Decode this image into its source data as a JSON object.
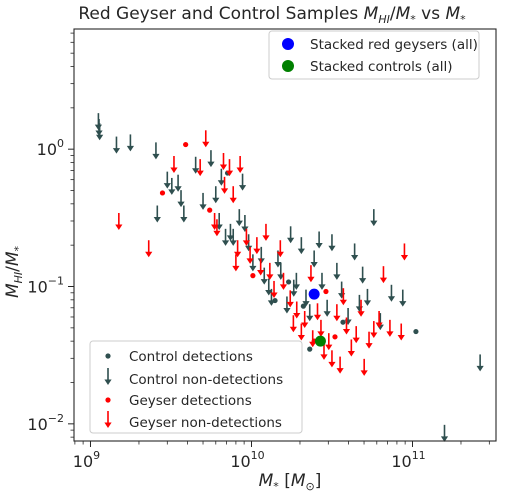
{
  "chart_data": {
    "type": "scatter",
    "title": "Red Geyser and Control Samples M_HI/M_* vs M_*",
    "title_parts": {
      "prefix": "Red Geyser and Control Samples ",
      "y_main": "M",
      "y_sub": "HI",
      "slash": "/",
      "x_main": "M",
      "x_sub": "*",
      "vs": " vs ",
      "x2_main": "M",
      "x2_sub": "*"
    },
    "xlabel": "M_* [M_sun]",
    "xlabel_parts": {
      "main": "M",
      "sub": "*",
      "bracket_open": " [",
      "unit_main": "M",
      "unit_sub": "⊙",
      "bracket_close": "]"
    },
    "ylabel": "M_HI/M_*",
    "ylabel_parts": {
      "main": "M",
      "sub": "HI",
      "slash": "/",
      "main2": "M",
      "sub2": "*"
    },
    "x_scale": "log",
    "y_scale": "log",
    "xlim": [
      790000000,
      330000000000
    ],
    "ylim": [
      0.0075,
      7.5
    ],
    "x_ticks": [
      {
        "value": 1000000000,
        "base": "10",
        "exp": "9"
      },
      {
        "value": 10000000000,
        "base": "10",
        "exp": "10"
      },
      {
        "value": 100000000000,
        "base": "10",
        "exp": "11"
      }
    ],
    "y_ticks": [
      {
        "value": 0.01,
        "base": "10",
        "exp": "−2"
      },
      {
        "value": 0.1,
        "base": "10",
        "exp": "−1"
      },
      {
        "value": 1,
        "base": "10",
        "exp": "0"
      }
    ],
    "grid": false,
    "colors": {
      "control": "#2f4f4f",
      "geyser": "#ff0000",
      "stacked_geysers": "#0000ff",
      "stacked_controls": "#008000",
      "axis": "#262626"
    },
    "legend_top": {
      "placement": "top-right",
      "entries": [
        {
          "label": "Stacked red geysers (all)",
          "marker": "big-circle",
          "series": "stacked_geysers"
        },
        {
          "label": "Stacked controls (all)",
          "marker": "big-circle",
          "series": "stacked_controls"
        }
      ]
    },
    "legend_bottom": {
      "placement": "bottom-left",
      "entries": [
        {
          "label": "Control detections",
          "marker": "dot",
          "series": "control"
        },
        {
          "label": "Control non-detections",
          "marker": "arrow",
          "series": "control"
        },
        {
          "label": "Geyser detections",
          "marker": "dot",
          "series": "geyser"
        },
        {
          "label": "Geyser non-detections",
          "marker": "arrow",
          "series": "geyser"
        }
      ]
    },
    "series": [
      {
        "name": "Control detections",
        "kind": "detection",
        "color_key": "control",
        "points": [
          [
            7100000000,
            0.67
          ],
          [
            17000000000,
            0.108
          ],
          [
            14000000000,
            0.079
          ],
          [
            21000000000,
            0.072
          ],
          [
            37000000000,
            0.055
          ],
          [
            105000000000,
            0.047
          ],
          [
            23000000000,
            0.035
          ]
        ]
      },
      {
        "name": "Control non-detections",
        "kind": "upper-limit",
        "color_key": "control",
        "points": [
          [
            1120000000,
            1.6
          ],
          [
            1130000000,
            1.45
          ],
          [
            1140000000,
            1.35
          ],
          [
            1450000000,
            1.08
          ],
          [
            1770000000,
            1.12
          ],
          [
            2550000000,
            0.98
          ],
          [
            2600000000,
            0.34
          ],
          [
            3000000000,
            0.6
          ],
          [
            3200000000,
            0.54
          ],
          [
            3500000000,
            0.57
          ],
          [
            3650000000,
            0.44
          ],
          [
            3800000000,
            0.34
          ],
          [
            4500000000,
            0.77
          ],
          [
            5000000000,
            0.42
          ],
          [
            5600000000,
            0.86
          ],
          [
            6000000000,
            0.47
          ],
          [
            6300000000,
            0.3
          ],
          [
            6500000000,
            0.63
          ],
          [
            6900000000,
            0.23
          ],
          [
            7400000000,
            0.25
          ],
          [
            7700000000,
            0.23
          ],
          [
            8400000000,
            0.32
          ],
          [
            8800000000,
            0.58
          ],
          [
            9100000000,
            0.29
          ],
          [
            9600000000,
            0.21
          ],
          [
            10200000000,
            0.15
          ],
          [
            11500000000,
            0.17
          ],
          [
            12000000000,
            0.12
          ],
          [
            12800000000,
            0.1
          ],
          [
            13300000000,
            0.084
          ],
          [
            14600000000,
            0.16
          ],
          [
            15200000000,
            0.13
          ],
          [
            16600000000,
            0.074
          ],
          [
            17500000000,
            0.24
          ],
          [
            18300000000,
            0.098
          ],
          [
            19000000000,
            0.11
          ],
          [
            20400000000,
            0.2
          ],
          [
            21800000000,
            0.083
          ],
          [
            23000000000,
            0.065
          ],
          [
            24500000000,
            0.16
          ],
          [
            26300000000,
            0.22
          ],
          [
            27400000000,
            0.11
          ],
          [
            29500000000,
            0.07
          ],
          [
            31600000000,
            0.21
          ],
          [
            33900000000,
            0.13
          ],
          [
            36300000000,
            0.095
          ],
          [
            39800000000,
            0.061
          ],
          [
            43700000000,
            0.18
          ],
          [
            46800000000,
            0.076
          ],
          [
            49000000000,
            0.122
          ],
          [
            52500000000,
            0.084
          ],
          [
            57500000000,
            0.32
          ],
          [
            63100000000,
            0.056
          ],
          [
            74000000000,
            0.09
          ],
          [
            87000000000,
            0.083
          ],
          [
            158000000000,
            0.0086
          ],
          [
            263000000000,
            0.028
          ]
        ]
      },
      {
        "name": "Geyser detections",
        "kind": "detection",
        "color_key": "geyser",
        "points": [
          [
            2800000000,
            0.48
          ],
          [
            3900000000,
            1.08
          ],
          [
            5500000000,
            0.36
          ],
          [
            10200000000,
            0.12
          ],
          [
            24500000000,
            0.04
          ],
          [
            33000000000,
            0.043
          ],
          [
            29000000000,
            0.092
          ]
        ]
      },
      {
        "name": "Geyser non-detections",
        "kind": "upper-limit",
        "color_key": "geyser",
        "points": [
          [
            1500000000,
            0.3
          ],
          [
            2300000000,
            0.19
          ],
          [
            3300000000,
            0.78
          ],
          [
            4800000000,
            0.74
          ],
          [
            5200000000,
            1.2
          ],
          [
            5900000000,
            0.3
          ],
          [
            6100000000,
            0.27
          ],
          [
            6700000000,
            0.82
          ],
          [
            6800000000,
            0.55
          ],
          [
            7300000000,
            0.74
          ],
          [
            7700000000,
            0.47
          ],
          [
            8200000000,
            0.19
          ],
          [
            8500000000,
            0.78
          ],
          [
            8000000000,
            0.15
          ],
          [
            9300000000,
            0.23
          ],
          [
            9800000000,
            0.17
          ],
          [
            10800000000,
            0.2
          ],
          [
            11400000000,
            0.14
          ],
          [
            12300000000,
            0.25
          ],
          [
            13000000000,
            0.13
          ],
          [
            13800000000,
            0.096
          ],
          [
            15100000000,
            0.19
          ],
          [
            15800000000,
            0.11
          ],
          [
            17400000000,
            0.082
          ],
          [
            18200000000,
            0.054
          ],
          [
            19100000000,
            0.068
          ],
          [
            20400000000,
            0.047
          ],
          [
            21400000000,
            0.058
          ],
          [
            23400000000,
            0.125
          ],
          [
            24000000000,
            0.042
          ],
          [
            25700000000,
            0.066
          ],
          [
            27000000000,
            0.05
          ],
          [
            28200000000,
            0.034
          ],
          [
            30200000000,
            0.04
          ],
          [
            31600000000,
            0.03
          ],
          [
            33900000000,
            0.065
          ],
          [
            35500000000,
            0.027
          ],
          [
            37200000000,
            0.085
          ],
          [
            38900000000,
            0.052
          ],
          [
            41700000000,
            0.036
          ],
          [
            44700000000,
            0.045
          ],
          [
            47900000000,
            0.07
          ],
          [
            50100000000,
            0.026
          ],
          [
            53700000000,
            0.041
          ],
          [
            57500000000,
            0.049
          ],
          [
            62000000000,
            0.058
          ],
          [
            66000000000,
            0.123
          ],
          [
            72400000000,
            0.05
          ],
          [
            85100000000,
            0.047
          ],
          [
            89100000000,
            0.18
          ]
        ]
      },
      {
        "name": "Stacked red geysers (all)",
        "kind": "stack",
        "color_key": "stacked_geysers",
        "points": [
          [
            24500000000,
            0.088
          ]
        ]
      },
      {
        "name": "Stacked controls (all)",
        "kind": "stack",
        "color_key": "stacked_controls",
        "points": [
          [
            26800000000,
            0.04
          ]
        ]
      }
    ]
  }
}
